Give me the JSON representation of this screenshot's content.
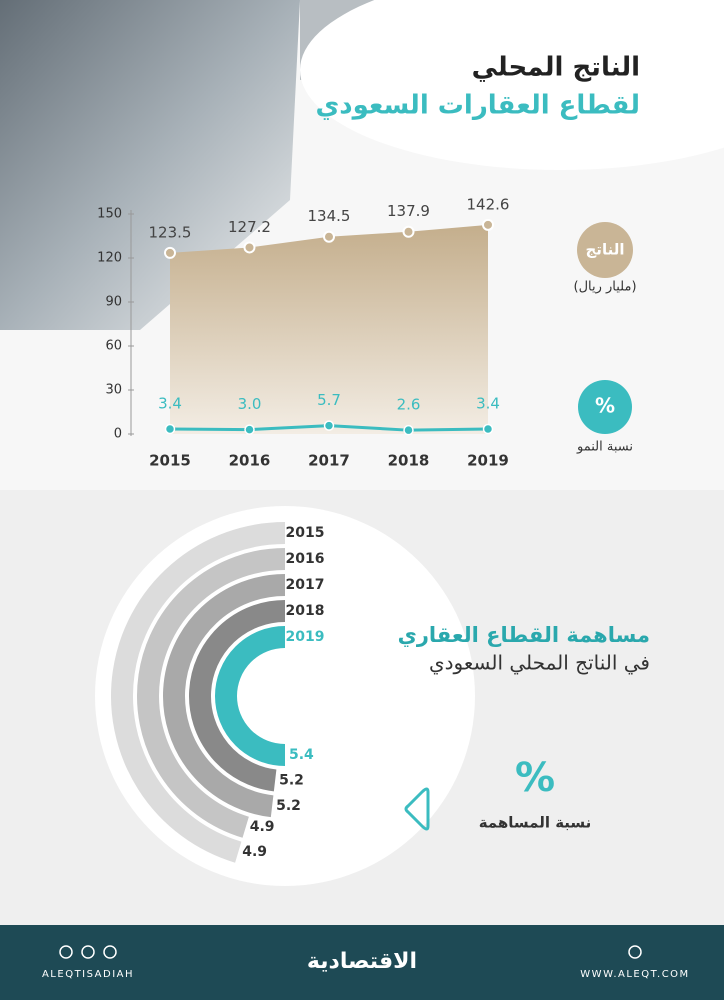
{
  "chart_data": [
    {
      "type": "area",
      "title": "الناتج المحلي",
      "subtitle": "لقطاع العقارات السعودي",
      "categories": [
        "2015",
        "2016",
        "2017",
        "2018",
        "2019"
      ],
      "series": [
        {
          "name": "الناتج",
          "caption": "(مليار ريال)",
          "color": "#c9b596",
          "values": [
            123.5,
            127.2,
            134.5,
            137.9,
            142.6
          ]
        },
        {
          "name": "%",
          "caption": "نسبة النمو",
          "color": "#3bbcc0",
          "values": [
            3.4,
            3.0,
            5.7,
            2.6,
            3.4
          ],
          "value_labels": [
            "3.4",
            "3.0",
            "5.7",
            "2.6",
            "3.4"
          ]
        }
      ],
      "ylim": [
        0,
        150
      ],
      "yticks": [
        0,
        30,
        60,
        90,
        120,
        150
      ]
    },
    {
      "type": "radial-bar",
      "title": "مساهمة القطاع العقاري",
      "subtitle": "في الناتج المحلي السعودي",
      "categories": [
        "2015",
        "2016",
        "2017",
        "2018",
        "2019"
      ],
      "values": [
        4.9,
        4.9,
        5.2,
        5.2,
        5.4
      ],
      "colors": [
        "#dcdcdc",
        "#c5c5c5",
        "#a9a9a9",
        "#898989",
        "#3bbcc0"
      ],
      "unit": "%",
      "unit_caption": "نسبة المساهمة"
    }
  ],
  "footer": {
    "handle": "ALEQTISADIAH",
    "logo": "الاقتصادية",
    "website": "WWW.ALEQT.COM"
  }
}
